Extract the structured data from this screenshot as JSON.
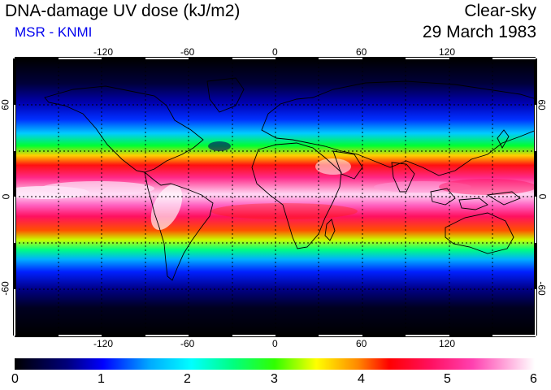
{
  "header": {
    "title": "DNA-damage UV dose (kJ/m2)",
    "subtitle": "MSR - KNMI",
    "condition": "Clear-sky",
    "date": "29 March 1983"
  },
  "map": {
    "longitude_ticks": [
      "-120",
      "-60",
      "0",
      "60",
      "120"
    ],
    "latitude_ticks_left": [
      "60",
      "0",
      "-60"
    ],
    "latitude_ticks_right": [
      "60",
      "0",
      "-60"
    ],
    "grid": "dotted every 30 degrees",
    "colors": {
      "dark": "#000000",
      "ocean_low": "#00008b",
      "blue": "#0000ff",
      "cyan": "#00ffff",
      "green": "#00ff00",
      "yellow": "#ffff00",
      "red": "#ff0000",
      "magenta": "#ff1493",
      "white": "#ffffff"
    }
  },
  "colorbar": {
    "labels": [
      "0",
      "1",
      "2",
      "3",
      "4",
      "5",
      "6"
    ],
    "min": 0,
    "max": 6
  }
}
